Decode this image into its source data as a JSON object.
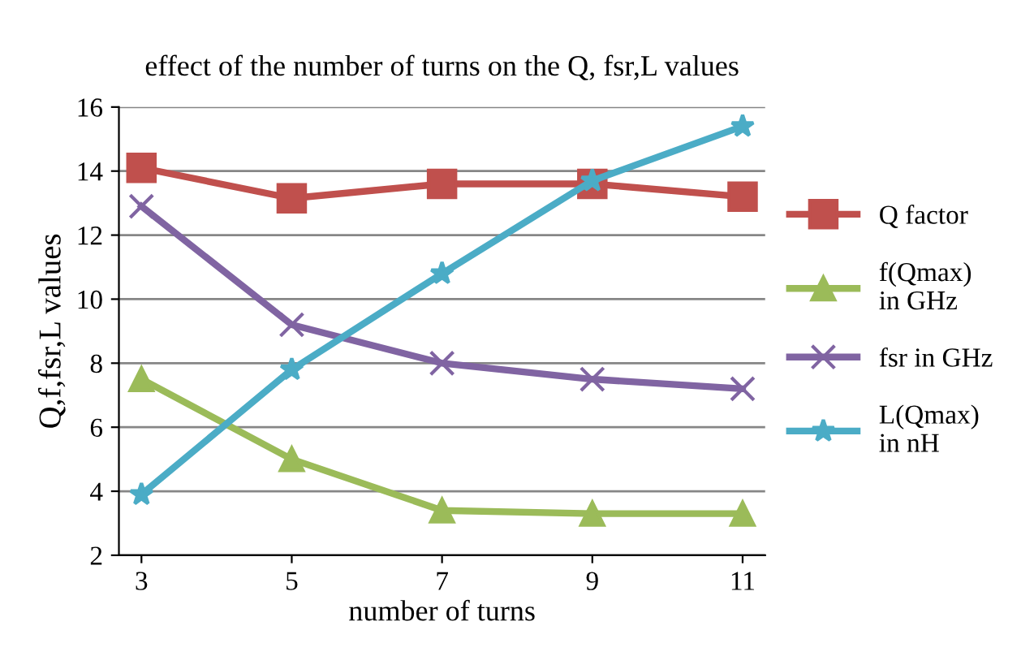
{
  "chart_data": {
    "type": "line",
    "title": "effect of the number of turns on the Q, fsr,L values",
    "xlabel": "number of turns",
    "ylabel": "Q,f,fsr,L values",
    "categories": [
      "3",
      "5",
      "7",
      "9",
      "11"
    ],
    "series": [
      {
        "name": "Q factor",
        "color": "#c0504d",
        "marker": "square",
        "values": [
          14.1,
          13.15,
          13.6,
          13.6,
          13.2
        ]
      },
      {
        "name": "f(Qmax)\nin GHz",
        "color": "#9bbb59",
        "marker": "triangle",
        "values": [
          7.5,
          5.0,
          3.4,
          3.3,
          3.3
        ]
      },
      {
        "name": "fsr in GHz",
        "color": "#8064a2",
        "marker": "cross",
        "values": [
          12.9,
          9.2,
          8.0,
          7.5,
          7.2
        ]
      },
      {
        "name": "L(Qmax)\nin nH",
        "color": "#4bacc6",
        "marker": "star",
        "values": [
          3.9,
          7.8,
          10.8,
          13.7,
          15.4
        ]
      }
    ],
    "ylim": [
      2,
      16
    ],
    "yticks": [
      2,
      4,
      6,
      8,
      10,
      12,
      14,
      16
    ],
    "grid": "y",
    "legend": "right",
    "line_style": "solid"
  }
}
